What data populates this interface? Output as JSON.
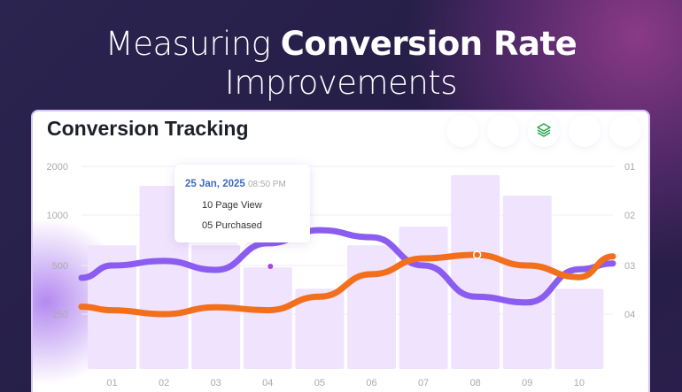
{
  "headline": {
    "regular": "Measuring ",
    "bold": "Conversion Rate",
    "line2": "Improvements"
  },
  "card": {
    "title": "Conversion Tracking",
    "icons": [
      "blank",
      "blank",
      "layers-icon",
      "blank",
      "blank"
    ],
    "accent": "#22a447"
  },
  "tooltip": {
    "date": "25 Jan, 2025",
    "time": "08:50 PM",
    "line1": "10 Page View",
    "line2": "05 Purchased"
  },
  "chart_data": {
    "type": "bar",
    "categories": [
      "01",
      "02",
      "03",
      "04",
      "05",
      "06",
      "07",
      "08",
      "09",
      "10"
    ],
    "left_ticks": [
      "2000",
      "1000",
      "500",
      "250"
    ],
    "right_ticks": [
      "01",
      "02",
      "03",
      "04"
    ],
    "grid": true,
    "bars": {
      "color": "#efe3fd",
      "values": [
        700,
        1600,
        700,
        490,
        380,
        700,
        885,
        1820,
        1400,
        380
      ]
    },
    "series": [
      {
        "type": "line",
        "color": "#8b5cf0",
        "values": [
          500,
          545,
          477,
          720,
          850,
          780,
          500,
          340,
          310,
          480
        ]
      },
      {
        "type": "line",
        "color": "#f26f1c",
        "values": [
          270,
          250,
          285,
          270,
          340,
          455,
          570,
          605,
          500,
          440
        ]
      }
    ]
  }
}
